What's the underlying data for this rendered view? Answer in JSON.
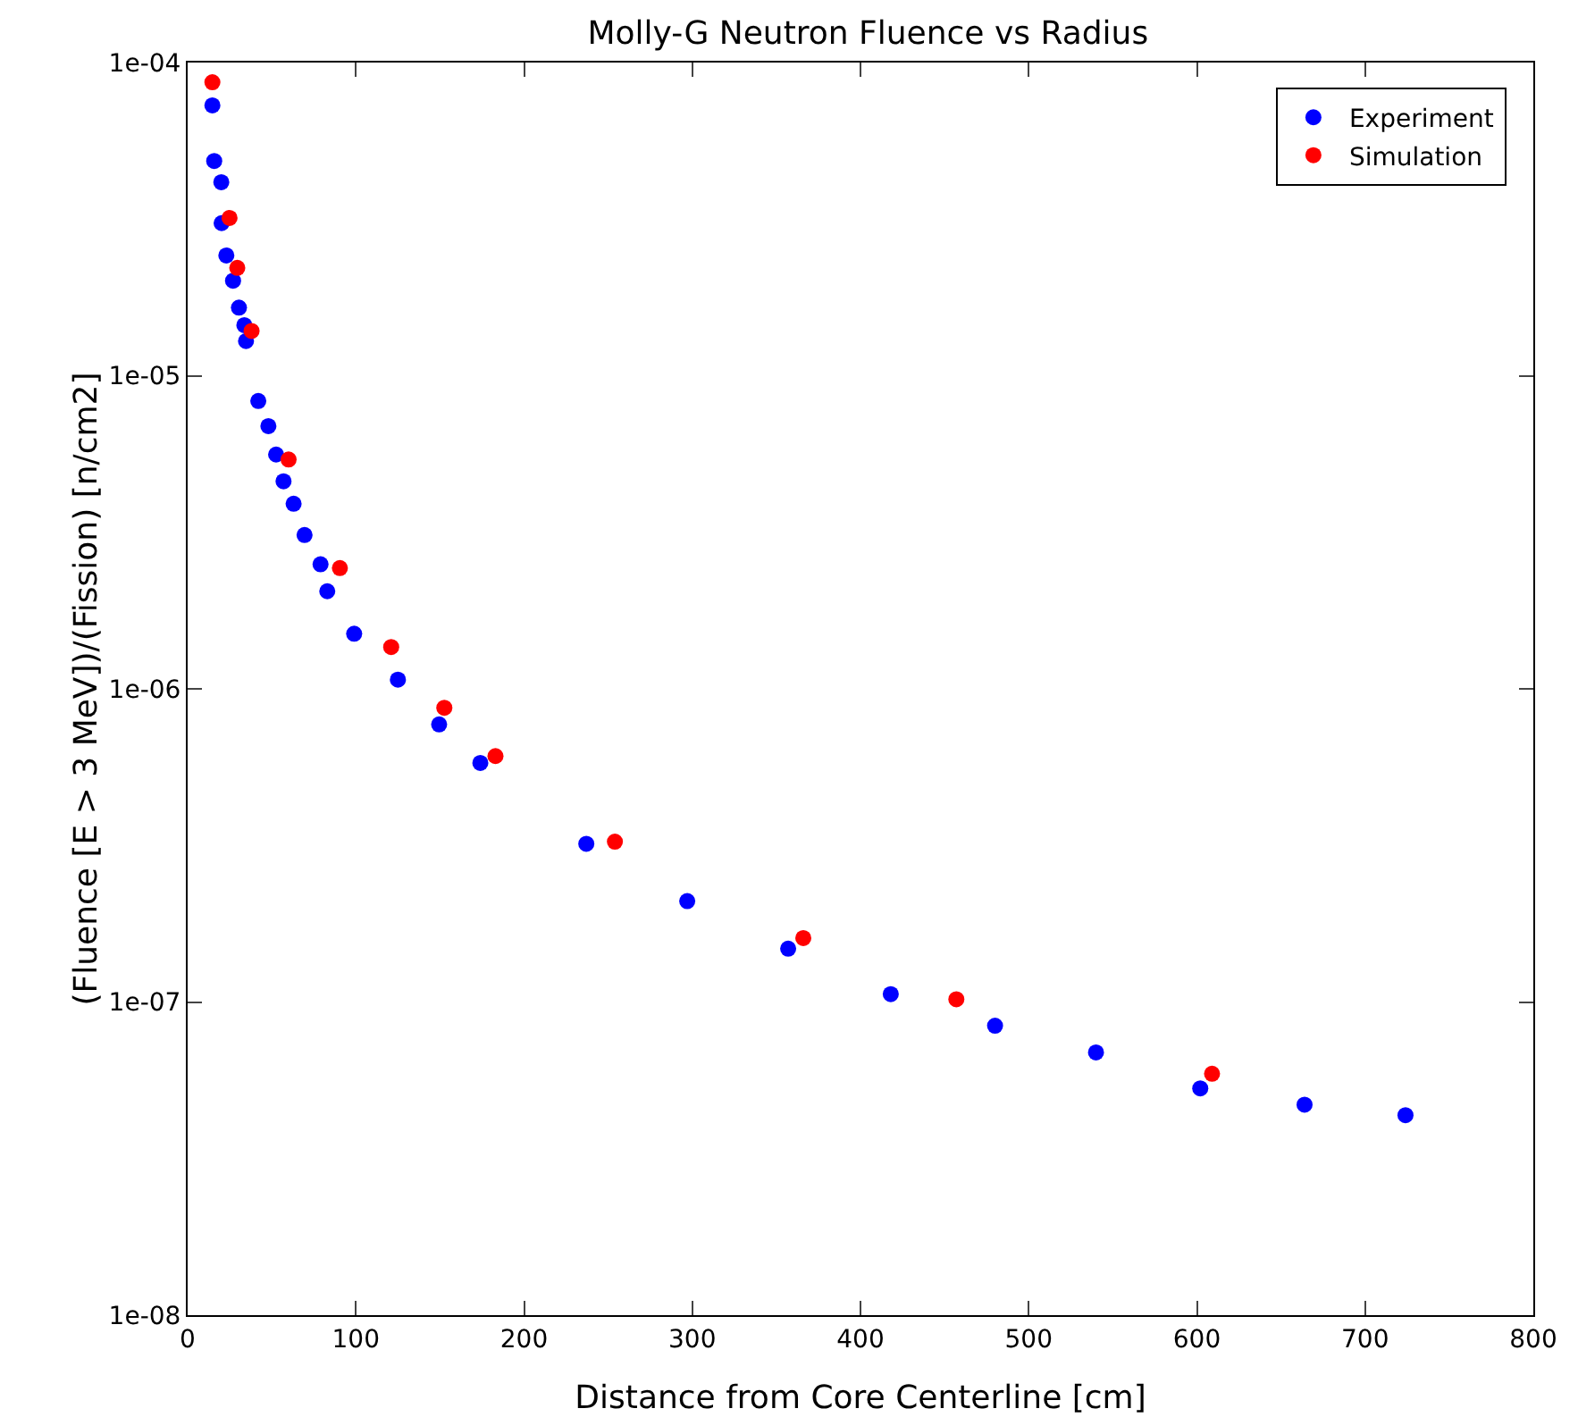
{
  "chart_data": {
    "type": "scatter",
    "title": "Molly-G Neutron Fluence vs Radius",
    "xlabel": "Distance from Core Centerline [cm]",
    "ylabel": "(Fluence [E > 3 MeV])/(Fission) [n/cm2]",
    "log": "y",
    "grid": false,
    "legend": "top right",
    "marker": "circle",
    "xlim": [
      0,
      800
    ],
    "xticks": [
      0,
      100,
      200,
      300,
      400,
      500,
      600,
      700,
      800
    ],
    "ylim": [
      1e-08,
      0.0001
    ],
    "yticks": [
      {
        "value": 1e-08,
        "label": "1e-08"
      },
      {
        "value": 1e-07,
        "label": "1e-07"
      },
      {
        "value": 1e-06,
        "label": "1e-06"
      },
      {
        "value": 1e-05,
        "label": "1e-05"
      },
      {
        "value": 0.0001,
        "label": "1e-04"
      }
    ],
    "series": [
      {
        "name": "Experiment",
        "color": "#0000ff",
        "x": [
          14.7,
          15.8,
          20,
          20.2,
          23,
          27,
          30.5,
          33.7,
          34.7,
          42,
          48,
          52.6,
          57,
          63,
          69.5,
          79,
          83,
          99,
          125,
          149.5,
          174,
          237,
          297,
          357,
          418,
          480,
          540,
          602,
          664,
          724
        ],
        "values": [
          7.3e-05,
          4.85e-05,
          4.15e-05,
          3.07e-05,
          2.42e-05,
          2.01e-05,
          1.65e-05,
          1.45e-05,
          1.29e-05,
          8.3e-06,
          6.9e-06,
          5.6e-06,
          4.6e-06,
          3.9e-06,
          3.1e-06,
          2.5e-06,
          2.05e-06,
          1.5e-06,
          1.07e-06,
          7.7e-07,
          5.8e-07,
          3.2e-07,
          2.1e-07,
          1.48e-07,
          1.06e-07,
          8.4e-08,
          6.9e-08,
          5.3e-08,
          4.7e-08,
          4.35e-08
        ]
      },
      {
        "name": "Simulation",
        "color": "#ff0000",
        "x": [
          14.7,
          24.9,
          29.5,
          38,
          60,
          90.5,
          121,
          152.6,
          183,
          254,
          366,
          457,
          609
        ],
        "values": [
          8.65e-05,
          3.19e-05,
          2.21e-05,
          1.39e-05,
          5.4e-06,
          2.43e-06,
          1.36e-06,
          8.7e-07,
          6.1e-07,
          3.25e-07,
          1.6e-07,
          1.02e-07,
          5.9e-08
        ]
      }
    ]
  }
}
